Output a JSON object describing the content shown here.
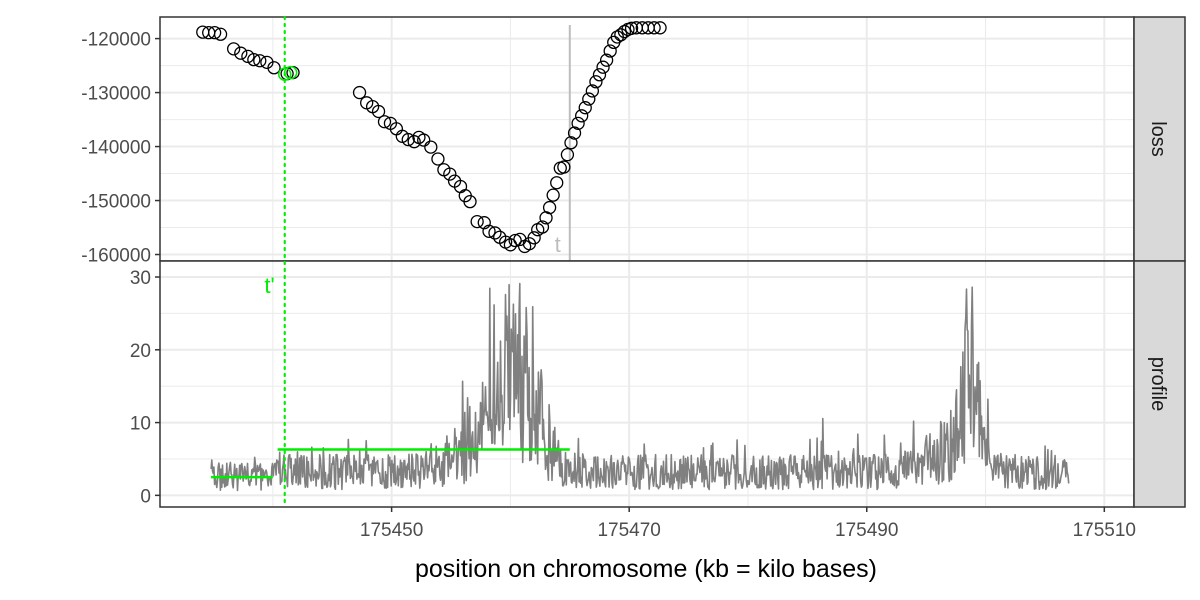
{
  "chart_data": {
    "type": "scatter+line",
    "xlabel": "position on chromosome (kb = kilo bases)",
    "x_ticks": [
      175450,
      175470,
      175490,
      175510
    ],
    "xlim": [
      175430.5,
      175512.5
    ],
    "colors": {
      "points": "#000000",
      "highlight": "#00ee00",
      "profile": "#808080",
      "segment": "#00ee00",
      "true_change": "#bdbdbd",
      "strip_bg": "#d9d9d9",
      "grid": "#ebebeb",
      "panel_border": "#333333"
    },
    "panels": [
      {
        "strip": "loss",
        "ylim": [
          -161200,
          -116000
        ],
        "y_ticks": [
          -120000,
          -130000,
          -140000,
          -150000,
          -160000
        ],
        "y_tick_labels": [
          "-120000",
          "-130000",
          "-140000",
          "-150000",
          "-160000"
        ],
        "points": [
          [
            175434.1,
            -118800
          ],
          [
            175434.6,
            -118900
          ],
          [
            175435.1,
            -118900
          ],
          [
            175435.6,
            -119200
          ],
          [
            175436.7,
            -121900
          ],
          [
            175437.3,
            -122700
          ],
          [
            175437.9,
            -123300
          ],
          [
            175438.4,
            -123900
          ],
          [
            175438.9,
            -124100
          ],
          [
            175439.5,
            -124400
          ],
          [
            175440.1,
            -125400
          ],
          [
            175441.2,
            -126500
          ],
          [
            175441.7,
            -126300
          ],
          [
            175447.3,
            -130000
          ],
          [
            175447.9,
            -131900
          ],
          [
            175448.4,
            -132600
          ],
          [
            175448.9,
            -133500
          ],
          [
            175449.4,
            -135400
          ],
          [
            175449.9,
            -135700
          ],
          [
            175450.4,
            -136700
          ],
          [
            175450.9,
            -138100
          ],
          [
            175451.4,
            -138700
          ],
          [
            175451.9,
            -139100
          ],
          [
            175452.3,
            -138300
          ],
          [
            175452.7,
            -138800
          ],
          [
            175453.3,
            -140100
          ],
          [
            175453.9,
            -142300
          ],
          [
            175454.4,
            -144300
          ],
          [
            175454.9,
            -145100
          ],
          [
            175455.3,
            -146400
          ],
          [
            175455.8,
            -147400
          ],
          [
            175456.2,
            -149100
          ],
          [
            175456.6,
            -150200
          ],
          [
            175457.2,
            -153900
          ],
          [
            175457.8,
            -154100
          ],
          [
            175458.2,
            -155700
          ],
          [
            175458.7,
            -156000
          ],
          [
            175459.1,
            -156800
          ],
          [
            175459.6,
            -157700
          ],
          [
            175460.0,
            -158200
          ],
          [
            175460.4,
            -157400
          ],
          [
            175460.8,
            -157200
          ],
          [
            175461.2,
            -158500
          ],
          [
            175461.6,
            -158000
          ],
          [
            175462.0,
            -156900
          ],
          [
            175462.3,
            -155400
          ],
          [
            175462.7,
            -154900
          ],
          [
            175463.0,
            -153200
          ],
          [
            175463.3,
            -151300
          ],
          [
            175463.6,
            -149000
          ],
          [
            175463.9,
            -146700
          ],
          [
            175464.2,
            -144000
          ],
          [
            175464.5,
            -143800
          ],
          [
            175464.8,
            -141500
          ],
          [
            175465.1,
            -139300
          ],
          [
            175465.4,
            -137500
          ],
          [
            175465.7,
            -135700
          ],
          [
            175466.0,
            -134300
          ],
          [
            175466.3,
            -132800
          ],
          [
            175466.6,
            -131200
          ],
          [
            175466.9,
            -129700
          ],
          [
            175467.2,
            -128000
          ],
          [
            175467.5,
            -126700
          ],
          [
            175467.8,
            -125300
          ],
          [
            175468.1,
            -124000
          ],
          [
            175468.4,
            -122300
          ],
          [
            175468.7,
            -120700
          ],
          [
            175469.0,
            -119700
          ],
          [
            175469.3,
            -119300
          ],
          [
            175469.6,
            -118700
          ],
          [
            175469.9,
            -118300
          ],
          [
            175470.2,
            -118100
          ],
          [
            175470.6,
            -118000
          ],
          [
            175471.1,
            -118000
          ],
          [
            175471.6,
            -118000
          ],
          [
            175472.1,
            -118000
          ],
          [
            175472.6,
            -118000
          ]
        ],
        "highlight_points": [
          [
            175441.0,
            -126600
          ],
          [
            175441.5,
            -126300
          ]
        ],
        "true_change_label": "t",
        "true_change_x": 175465.0
      },
      {
        "strip": "profile",
        "ylim": [
          -1.6,
          32.2
        ],
        "y_ticks": [
          0,
          10,
          20,
          30
        ],
        "y_tick_labels": [
          "0",
          "10",
          "20",
          "30"
        ],
        "profile_x_range": [
          175434.8,
          175507.0
        ],
        "segments": [
          {
            "x0": 175434.8,
            "x1": 175440.0,
            "y": 2.5
          },
          {
            "x0": 175440.4,
            "x1": 175465.0,
            "y": 6.3
          }
        ],
        "candidate_label": "t'",
        "candidate_x": 175441.0
      }
    ]
  }
}
